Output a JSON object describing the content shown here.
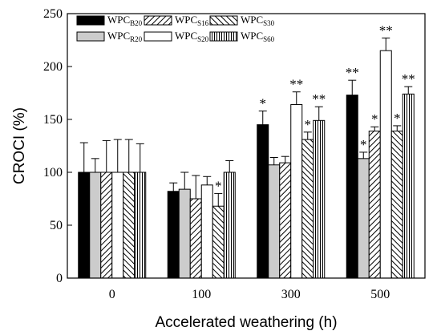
{
  "chart_data": {
    "type": "bar",
    "xlabel": "Accelerated weathering (h)",
    "ylabel": "CROCI (%)",
    "ylim": [
      0,
      250
    ],
    "yticks": [
      0,
      50,
      100,
      150,
      200,
      250
    ],
    "categories": [
      "0",
      "100",
      "300",
      "500"
    ],
    "grid": false,
    "legend_position": "top-left",
    "series": [
      {
        "name": "WPC",
        "sub": "B20",
        "pattern": "solid-black",
        "values": [
          100,
          82,
          145,
          173
        ],
        "errors": [
          28,
          8,
          13,
          14
        ],
        "sig": [
          "",
          "",
          "*",
          "**"
        ]
      },
      {
        "name": "WPC",
        "sub": "R20",
        "pattern": "solid-gray",
        "values": [
          100,
          84,
          107,
          113
        ],
        "errors": [
          13,
          16,
          7,
          6
        ],
        "sig": [
          "",
          "",
          "",
          "*"
        ]
      },
      {
        "name": "WPC",
        "sub": "S16",
        "pattern": "hatch-forward",
        "values": [
          100,
          75,
          109,
          139
        ],
        "errors": [
          30,
          22,
          6,
          4
        ],
        "sig": [
          "",
          "",
          "",
          "*"
        ]
      },
      {
        "name": "WPC",
        "sub": "S20",
        "pattern": "white",
        "values": [
          100,
          88,
          164,
          215
        ],
        "errors": [
          31,
          8,
          12,
          12
        ],
        "sig": [
          "",
          "",
          "**",
          "**"
        ]
      },
      {
        "name": "WPC",
        "sub": "S30",
        "pattern": "hatch-back",
        "values": [
          100,
          68,
          131,
          139
        ],
        "errors": [
          31,
          12,
          7,
          5
        ],
        "sig": [
          "",
          "*",
          "*",
          "*"
        ]
      },
      {
        "name": "WPC",
        "sub": "S60",
        "pattern": "vertical-lines",
        "values": [
          100,
          100,
          149,
          174
        ],
        "errors": [
          27,
          11,
          13,
          7
        ],
        "sig": [
          "",
          "",
          "**",
          "**"
        ]
      }
    ]
  }
}
